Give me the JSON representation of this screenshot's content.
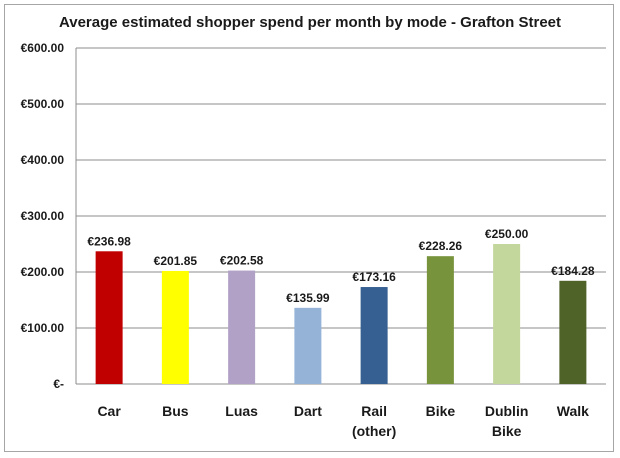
{
  "chart_data": {
    "type": "bar",
    "title": "Average estimated shopper spend per month by mode - Grafton Street",
    "xlabel": "",
    "ylabel": "",
    "ylim": [
      0,
      600
    ],
    "yticks": [
      0,
      100,
      200,
      300,
      400,
      500,
      600
    ],
    "ytick_labels": [
      "€-",
      "€100.00",
      "€200.00",
      "€300.00",
      "€400.00",
      "€500.00",
      "€600.00"
    ],
    "grid": true,
    "legend": "none",
    "categories": [
      [
        "Car"
      ],
      [
        "Bus"
      ],
      [
        "Luas"
      ],
      [
        "Dart"
      ],
      [
        "Rail",
        "(other)"
      ],
      [
        "Bike"
      ],
      [
        "Dublin",
        "Bike"
      ],
      [
        "Walk"
      ]
    ],
    "values": [
      236.98,
      201.85,
      202.58,
      135.99,
      173.16,
      228.26,
      250.0,
      184.28
    ],
    "data_labels": [
      "€236.98",
      "€201.85",
      "€202.58",
      "€135.99",
      "€173.16",
      "€228.26",
      "€250.00",
      "€184.28"
    ],
    "colors": [
      "#c00000",
      "#ffff00",
      "#b2a1c7",
      "#95b3d7",
      "#366092",
      "#77933c",
      "#c3d69b",
      "#4f6228"
    ]
  }
}
